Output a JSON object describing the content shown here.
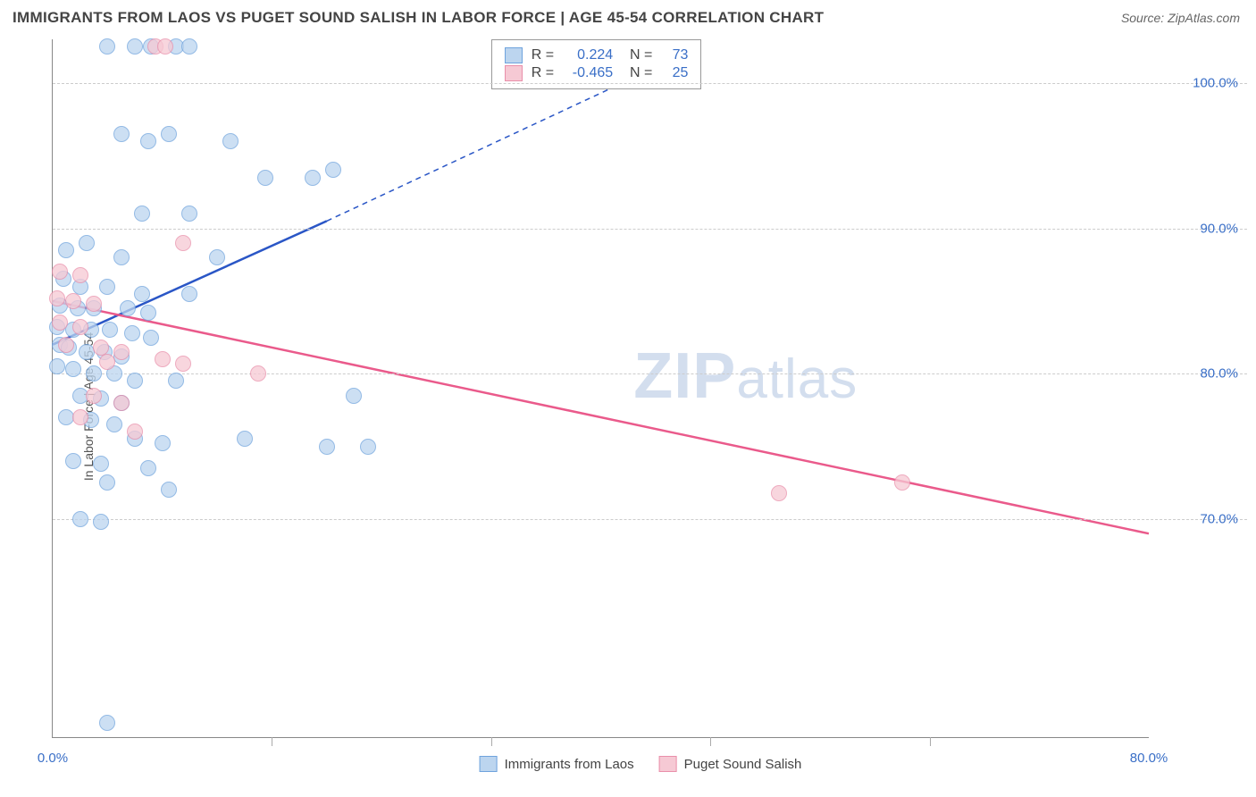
{
  "title": "IMMIGRANTS FROM LAOS VS PUGET SOUND SALISH IN LABOR FORCE | AGE 45-54 CORRELATION CHART",
  "source_label": "Source: ZipAtlas.com",
  "ylabel": "In Labor Force | Age 45-54",
  "watermark": {
    "prefix": "ZIP",
    "suffix": "atlas"
  },
  "chart": {
    "type": "scatter-with-regression",
    "background_color": "#ffffff",
    "grid_color": "#cccccc",
    "axis_color": "#888888",
    "xlim": [
      0,
      80
    ],
    "ylim": [
      55,
      103
    ],
    "xticks": [
      0,
      80
    ],
    "xtick_labels": [
      "0.0%",
      "80.0%"
    ],
    "xtick_minor": [
      16,
      32,
      48,
      64
    ],
    "yticks": [
      70,
      80,
      90,
      100
    ],
    "ytick_labels": [
      "70.0%",
      "80.0%",
      "90.0%",
      "100.0%"
    ],
    "series": [
      {
        "id": "laos",
        "label": "Immigrants from Laos",
        "marker_fill": "#bcd5ef",
        "marker_stroke": "#6fa3dd",
        "line_color": "#2a56c6",
        "R": "0.224",
        "N": "73",
        "regression": {
          "solid": [
            [
              0,
              82
            ],
            [
              20,
              90.5
            ]
          ],
          "dashed": [
            [
              20,
              90.5
            ],
            [
              45,
              101.5
            ]
          ]
        },
        "points": [
          [
            4,
            102.5
          ],
          [
            6,
            102.5
          ],
          [
            7.2,
            102.5
          ],
          [
            9,
            102.5
          ],
          [
            10,
            102.5
          ],
          [
            5,
            96.5
          ],
          [
            7,
            96
          ],
          [
            8.5,
            96.5
          ],
          [
            13,
            96
          ],
          [
            15.5,
            93.5
          ],
          [
            19,
            93.5
          ],
          [
            20.5,
            94
          ],
          [
            6.5,
            91
          ],
          [
            10,
            91
          ],
          [
            1,
            88.5
          ],
          [
            2.5,
            89
          ],
          [
            5,
            88
          ],
          [
            12,
            88
          ],
          [
            0.8,
            86.5
          ],
          [
            2,
            86
          ],
          [
            4,
            86
          ],
          [
            6.5,
            85.5
          ],
          [
            10,
            85.5
          ],
          [
            0.5,
            84.7
          ],
          [
            1.8,
            84.5
          ],
          [
            3,
            84.5
          ],
          [
            5.5,
            84.5
          ],
          [
            7,
            84.2
          ],
          [
            0.3,
            83.2
          ],
          [
            1.5,
            83
          ],
          [
            2.8,
            83
          ],
          [
            4.2,
            83
          ],
          [
            5.8,
            82.8
          ],
          [
            7.2,
            82.5
          ],
          [
            0.5,
            82
          ],
          [
            1.2,
            81.8
          ],
          [
            2.5,
            81.5
          ],
          [
            3.8,
            81.5
          ],
          [
            5,
            81.2
          ],
          [
            0.3,
            80.5
          ],
          [
            1.5,
            80.3
          ],
          [
            3,
            80
          ],
          [
            4.5,
            80
          ],
          [
            6,
            79.5
          ],
          [
            9,
            79.5
          ],
          [
            2,
            78.5
          ],
          [
            3.5,
            78.3
          ],
          [
            5,
            78
          ],
          [
            22,
            78.5
          ],
          [
            1,
            77
          ],
          [
            2.8,
            76.8
          ],
          [
            4.5,
            76.5
          ],
          [
            6,
            75.5
          ],
          [
            8,
            75.2
          ],
          [
            14,
            75.5
          ],
          [
            20,
            75
          ],
          [
            23,
            75
          ],
          [
            1.5,
            74
          ],
          [
            3.5,
            73.8
          ],
          [
            7,
            73.5
          ],
          [
            4,
            72.5
          ],
          [
            8.5,
            72
          ],
          [
            2,
            70
          ],
          [
            3.5,
            69.8
          ],
          [
            4,
            56
          ]
        ]
      },
      {
        "id": "salish",
        "label": "Puget Sound Salish",
        "marker_fill": "#f6c9d4",
        "marker_stroke": "#e98faa",
        "line_color": "#ea5a8b",
        "R": "-0.465",
        "N": "25",
        "regression": {
          "solid": [
            [
              0,
              85
            ],
            [
              80,
              69
            ]
          ],
          "dashed": null
        },
        "points": [
          [
            7.5,
            102.5
          ],
          [
            8.2,
            102.5
          ],
          [
            9.5,
            89
          ],
          [
            0.5,
            87
          ],
          [
            2,
            86.8
          ],
          [
            0.3,
            85.2
          ],
          [
            1.5,
            85
          ],
          [
            3,
            84.8
          ],
          [
            0.5,
            83.5
          ],
          [
            2,
            83.2
          ],
          [
            1,
            82
          ],
          [
            3.5,
            81.8
          ],
          [
            5,
            81.5
          ],
          [
            4,
            80.8
          ],
          [
            8,
            81
          ],
          [
            9.5,
            80.7
          ],
          [
            15,
            80
          ],
          [
            3,
            78.5
          ],
          [
            5,
            78
          ],
          [
            2,
            77
          ],
          [
            6,
            76
          ],
          [
            53,
            71.8
          ],
          [
            62,
            72.5
          ]
        ]
      }
    ]
  },
  "legend_bottom": [
    {
      "series": "laos"
    },
    {
      "series": "salish"
    }
  ]
}
